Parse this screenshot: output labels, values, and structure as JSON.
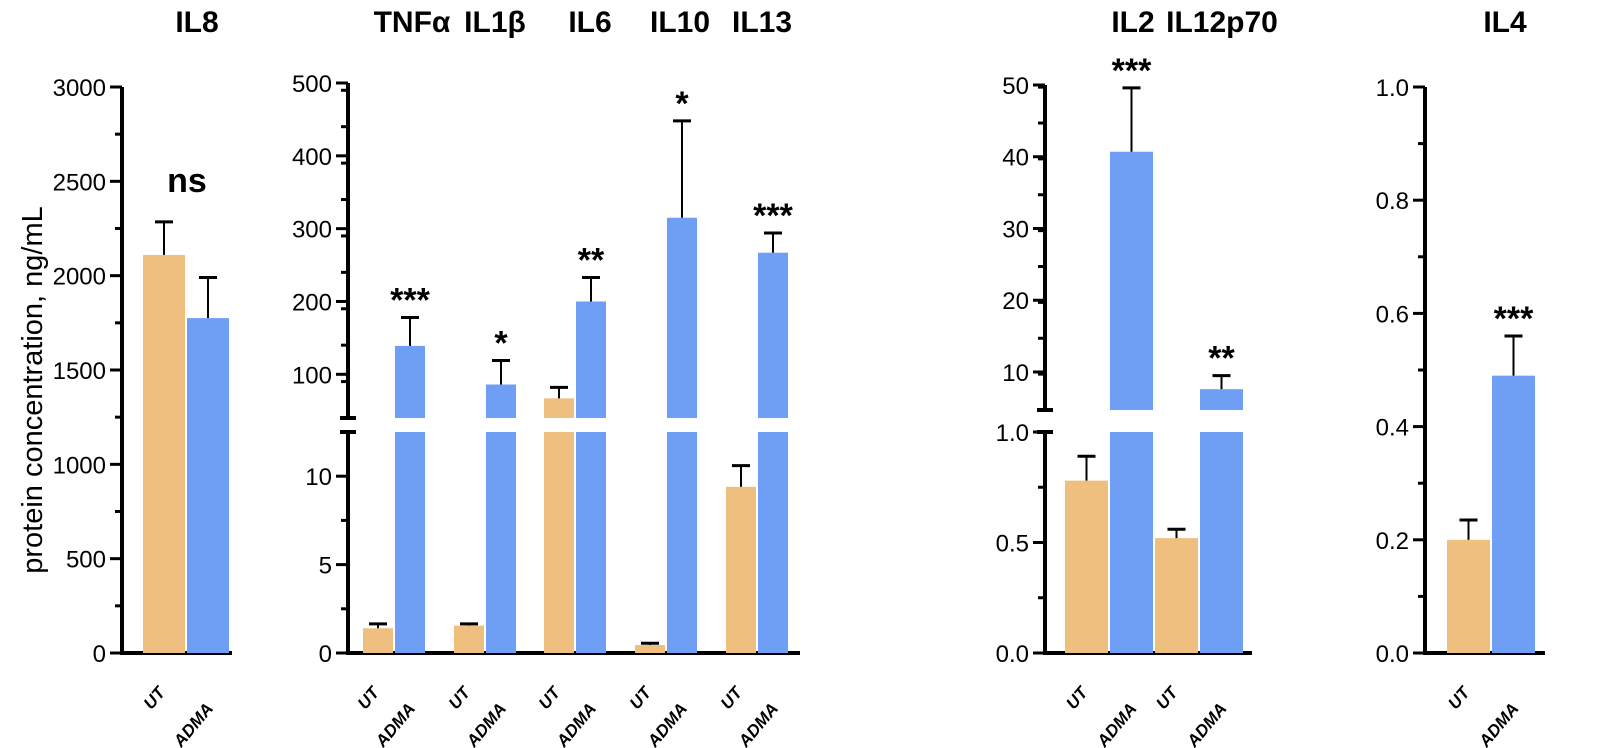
{
  "chart_data": {
    "type": "bar",
    "ylabel": "protein concentration, ng/mL",
    "series_colors": {
      "UT": "#EFBF80",
      "ADMA": "#6F9EF5"
    },
    "categories": [
      "UT",
      "ADMA"
    ],
    "panels": [
      {
        "axis": {
          "broken": false,
          "range": [
            0,
            3000
          ],
          "ticks": [
            "0",
            "500",
            "1000",
            "1500",
            "2000",
            "2500",
            "3000"
          ],
          "tick_values": [
            0,
            500,
            1000,
            1500,
            2000,
            2500,
            3000
          ],
          "minor_step": 250
        },
        "groups": [
          {
            "name": "IL8",
            "UT": {
              "value": 2110,
              "error": 175
            },
            "ADMA": {
              "value": 1775,
              "error": 215
            },
            "significance": "ns"
          }
        ]
      },
      {
        "axis": {
          "broken": true,
          "lower_range": [
            0,
            12.5
          ],
          "upper_range": [
            40,
            500
          ],
          "lower_ticks": [
            "0",
            "5",
            "10"
          ],
          "lower_tick_values": [
            0,
            5,
            10
          ],
          "lower_minor_step": 2.5,
          "upper_ticks": [
            "100",
            "200",
            "300",
            "400",
            "500"
          ],
          "upper_tick_values": [
            100,
            200,
            300,
            400,
            500
          ],
          "upper_minor_step": 50
        },
        "groups": [
          {
            "name": "TNFα",
            "UT": {
              "value": 1.4,
              "error": 0.25
            },
            "ADMA": {
              "value": 139,
              "error": 39
            },
            "significance": "***"
          },
          {
            "name": "IL1β",
            "UT": {
              "value": 1.55,
              "error": 0.1
            },
            "ADMA": {
              "value": 86,
              "error": 33
            },
            "significance": "*"
          },
          {
            "name": "IL6",
            "UT": {
              "value": 67,
              "error": 15
            },
            "ADMA": {
              "value": 200,
              "error": 33
            },
            "significance": "**"
          },
          {
            "name": "IL10",
            "UT": {
              "value": 0.45,
              "error": 0.1
            },
            "ADMA": {
              "value": 315,
              "error": 133
            },
            "significance": "*"
          },
          {
            "name": "IL13",
            "UT": {
              "value": 9.4,
              "error": 1.2
            },
            "ADMA": {
              "value": 267,
              "error": 27
            },
            "significance": "***"
          }
        ]
      },
      {
        "axis": {
          "broken": true,
          "lower_range": [
            0,
            1.0
          ],
          "upper_range": [
            4.7,
            50
          ],
          "lower_ticks": [
            "0.0",
            "0.5",
            "1.0"
          ],
          "lower_tick_values": [
            0,
            0.5,
            1.0
          ],
          "lower_minor_step": 0.25,
          "upper_ticks": [
            "10",
            "20",
            "30",
            "40",
            "50"
          ],
          "upper_tick_values": [
            10,
            20,
            30,
            40,
            50
          ],
          "upper_minor_step": 5
        },
        "groups": [
          {
            "name": "IL2",
            "UT": {
              "value": 0.78,
              "error": 0.11
            },
            "ADMA": {
              "value": 40.7,
              "error": 8.9
            },
            "significance": "***"
          },
          {
            "name": "IL12p70",
            "UT": {
              "value": 0.52,
              "error": 0.04
            },
            "ADMA": {
              "value": 7.6,
              "error": 1.9
            },
            "significance": "**"
          }
        ]
      },
      {
        "axis": {
          "broken": false,
          "range": [
            0,
            1.0
          ],
          "ticks": [
            "0.0",
            "0.2",
            "0.4",
            "0.6",
            "0.8",
            "1.0"
          ],
          "tick_values": [
            0,
            0.2,
            0.4,
            0.6,
            0.8,
            1.0
          ],
          "minor_step": 0.1
        },
        "groups": [
          {
            "name": "IL4",
            "UT": {
              "value": 0.2,
              "error": 0.035
            },
            "ADMA": {
              "value": 0.49,
              "error": 0.07
            },
            "significance": "***"
          }
        ]
      }
    ]
  }
}
